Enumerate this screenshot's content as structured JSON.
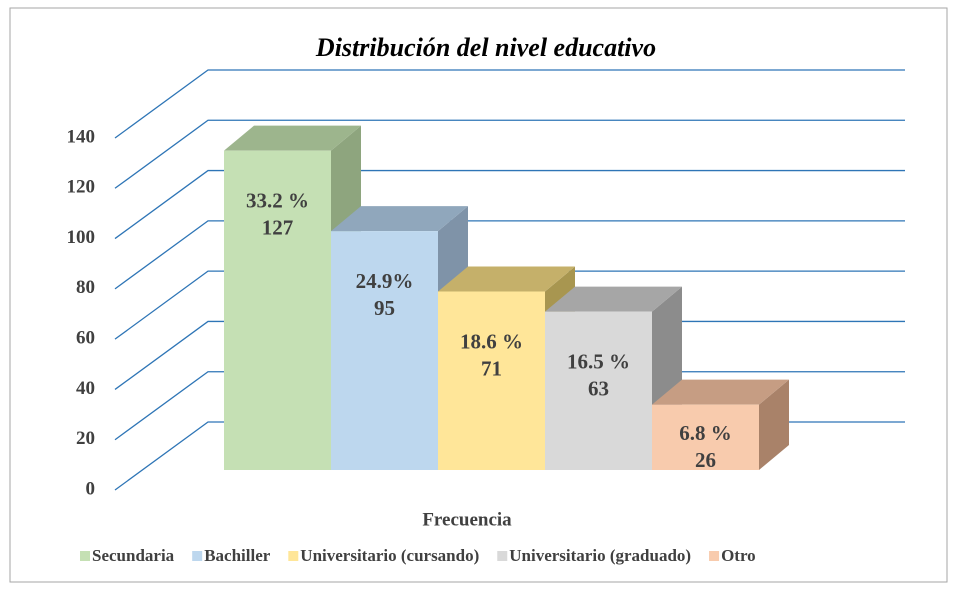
{
  "chart_data": {
    "type": "bar3d",
    "title": "Distribución del nivel educativo",
    "x_label": "Frecuencia",
    "series": [
      {
        "name": "Secundaria",
        "color": "#c5e0b4",
        "side_color": "#8ea57e",
        "top_color": "#9db58d",
        "values": [
          127
        ],
        "share": 33.2,
        "share_label": "33.2 %"
      },
      {
        "name": "Bachiller",
        "color": "#bdd7ee",
        "side_color": "#7f93a8",
        "top_color": "#90a7bc",
        "values": [
          95
        ],
        "share": 24.9,
        "share_label": "24.9%"
      },
      {
        "name": "Universitario (cursando)",
        "color": "#ffe699",
        "side_color": "#a89650",
        "top_color": "#c5b06a",
        "values": [
          71
        ],
        "share": 18.6,
        "share_label": "18.6 %"
      },
      {
        "name": "Universitario (graduado)",
        "color": "#d9d9d9",
        "side_color": "#8c8c8c",
        "top_color": "#a6a6a6",
        "values": [
          63
        ],
        "share": 16.5,
        "share_label": "16.5 %"
      },
      {
        "name": "Otro",
        "color": "#f8cbad",
        "side_color": "#a98269",
        "top_color": "#c69d83",
        "values": [
          26
        ],
        "share": 6.8,
        "share_label": "6.8 %"
      }
    ],
    "ylim": [
      0,
      140
    ],
    "yticks": [
      0,
      20,
      40,
      60,
      80,
      100,
      120,
      140
    ],
    "grid": true,
    "grid_color": "#2e75b6"
  }
}
